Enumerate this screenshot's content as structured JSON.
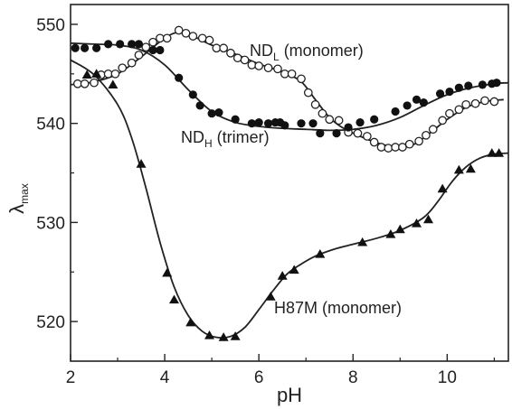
{
  "chart_data": {
    "type": "scatter",
    "xlabel": "pH",
    "ylabel": {
      "main": "λ",
      "sub": "max"
    },
    "xlim": [
      2,
      11.3
    ],
    "ylim": [
      516,
      552
    ],
    "xticks": [
      "2",
      "4",
      "6",
      "8",
      "10"
    ],
    "yticks": [
      "520",
      "530",
      "540",
      "550"
    ],
    "xtick_values": [
      2,
      4,
      6,
      8,
      10
    ],
    "ytick_values": [
      520,
      530,
      540,
      550
    ],
    "grid": false,
    "series": [
      {
        "name": "ND_L (monomer)",
        "marker": "open-circle",
        "points": [
          [
            2.15,
            544.0
          ],
          [
            2.3,
            544.0
          ],
          [
            2.5,
            544.1
          ],
          [
            2.65,
            544.9
          ],
          [
            2.8,
            545.0
          ],
          [
            2.95,
            545.0
          ],
          [
            3.1,
            545.6
          ],
          [
            3.3,
            546.1
          ],
          [
            3.45,
            546.9
          ],
          [
            3.6,
            547.7
          ],
          [
            3.75,
            548.2
          ],
          [
            3.9,
            548.6
          ],
          [
            4.05,
            548.6
          ],
          [
            4.3,
            549.4
          ],
          [
            4.45,
            549.1
          ],
          [
            4.6,
            548.8
          ],
          [
            4.8,
            548.6
          ],
          [
            4.95,
            548.4
          ],
          [
            5.1,
            547.6
          ],
          [
            5.25,
            547.6
          ],
          [
            5.4,
            547.1
          ],
          [
            5.55,
            546.6
          ],
          [
            5.7,
            546.4
          ],
          [
            5.85,
            545.9
          ],
          [
            6.0,
            545.8
          ],
          [
            6.2,
            545.6
          ],
          [
            6.4,
            545.5
          ],
          [
            6.55,
            545.0
          ],
          [
            6.7,
            545.0
          ],
          [
            6.9,
            544.5
          ],
          [
            7.05,
            543.1
          ],
          [
            7.2,
            541.9
          ],
          [
            7.35,
            541.0
          ],
          [
            7.5,
            540.4
          ],
          [
            7.7,
            540.3
          ],
          [
            7.9,
            539.1
          ],
          [
            8.1,
            539.0
          ],
          [
            8.3,
            538.7
          ],
          [
            8.45,
            538.1
          ],
          [
            8.6,
            537.6
          ],
          [
            8.75,
            537.5
          ],
          [
            8.9,
            537.6
          ],
          [
            9.05,
            537.6
          ],
          [
            9.2,
            537.9
          ],
          [
            9.4,
            538.2
          ],
          [
            9.55,
            538.8
          ],
          [
            9.7,
            539.4
          ],
          [
            9.9,
            540.3
          ],
          [
            10.05,
            541.0
          ],
          [
            10.25,
            541.4
          ],
          [
            10.4,
            541.9
          ],
          [
            10.6,
            542.0
          ],
          [
            10.8,
            542.3
          ],
          [
            11.0,
            542.2
          ]
        ],
        "fit": [
          [
            2.0,
            543.9
          ],
          [
            2.5,
            544.2
          ],
          [
            3.0,
            545.0
          ],
          [
            3.5,
            546.7
          ],
          [
            4.0,
            548.6
          ],
          [
            4.3,
            549.2
          ],
          [
            4.6,
            548.8
          ],
          [
            5.0,
            547.9
          ],
          [
            5.5,
            547.0
          ],
          [
            6.0,
            546.0
          ],
          [
            6.5,
            545.2
          ],
          [
            6.9,
            544.2
          ],
          [
            7.2,
            542.4
          ],
          [
            7.5,
            540.6
          ],
          [
            7.8,
            539.5
          ],
          [
            8.2,
            538.6
          ],
          [
            8.6,
            537.9
          ],
          [
            9.0,
            537.6
          ],
          [
            9.3,
            537.9
          ],
          [
            9.6,
            538.9
          ],
          [
            10.0,
            540.4
          ],
          [
            10.4,
            541.6
          ],
          [
            10.8,
            542.2
          ],
          [
            11.2,
            542.4
          ]
        ]
      },
      {
        "name": "ND_H (trimer)",
        "marker": "filled-circle",
        "points": [
          [
            2.1,
            547.6
          ],
          [
            2.3,
            547.6
          ],
          [
            2.55,
            547.6
          ],
          [
            2.8,
            548.0
          ],
          [
            3.05,
            548.0
          ],
          [
            3.3,
            548.0
          ],
          [
            3.45,
            548.0
          ],
          [
            3.75,
            547.4
          ],
          [
            3.9,
            547.4
          ],
          [
            4.3,
            544.6
          ],
          [
            4.6,
            542.9
          ],
          [
            4.75,
            541.8
          ],
          [
            5.0,
            541.0
          ],
          [
            5.15,
            541.1
          ],
          [
            5.5,
            540.4
          ],
          [
            5.85,
            540.0
          ],
          [
            6.0,
            540.1
          ],
          [
            6.2,
            540.0
          ],
          [
            6.35,
            540.1
          ],
          [
            6.45,
            540.1
          ],
          [
            6.55,
            539.8
          ],
          [
            6.9,
            540.0
          ],
          [
            7.15,
            540.0
          ],
          [
            7.3,
            539.0
          ],
          [
            7.65,
            539.0
          ],
          [
            7.9,
            539.6
          ],
          [
            8.15,
            540.1
          ],
          [
            8.45,
            540.4
          ],
          [
            8.9,
            541.2
          ],
          [
            9.15,
            541.8
          ],
          [
            9.35,
            542.4
          ],
          [
            9.5,
            542.1
          ],
          [
            9.85,
            543.0
          ],
          [
            10.05,
            543.2
          ],
          [
            10.25,
            543.6
          ],
          [
            10.45,
            543.8
          ],
          [
            10.75,
            543.9
          ],
          [
            10.95,
            544.0
          ],
          [
            11.05,
            544.1
          ]
        ],
        "fit": [
          [
            2.0,
            548.1
          ],
          [
            2.5,
            548.0
          ],
          [
            3.0,
            547.9
          ],
          [
            3.5,
            547.4
          ],
          [
            4.0,
            545.9
          ],
          [
            4.5,
            543.4
          ],
          [
            5.0,
            541.2
          ],
          [
            5.5,
            540.1
          ],
          [
            6.0,
            539.7
          ],
          [
            6.5,
            539.5
          ],
          [
            7.0,
            539.4
          ],
          [
            7.5,
            539.3
          ],
          [
            8.0,
            539.4
          ],
          [
            8.5,
            539.8
          ],
          [
            9.0,
            540.6
          ],
          [
            9.5,
            541.8
          ],
          [
            10.0,
            542.9
          ],
          [
            10.5,
            543.6
          ],
          [
            11.0,
            544.0
          ],
          [
            11.3,
            544.1
          ]
        ]
      },
      {
        "name": "H87M (monomer)",
        "marker": "filled-triangle",
        "points": [
          [
            2.35,
            544.9
          ],
          [
            2.55,
            545.0
          ],
          [
            2.9,
            543.9
          ],
          [
            3.5,
            535.9
          ],
          [
            4.05,
            524.9
          ],
          [
            4.2,
            522.2
          ],
          [
            4.55,
            519.9
          ],
          [
            4.95,
            518.6
          ],
          [
            5.25,
            518.4
          ],
          [
            5.5,
            518.5
          ],
          [
            6.25,
            522.5
          ],
          [
            6.5,
            524.6
          ],
          [
            6.75,
            525.2
          ],
          [
            7.3,
            526.8
          ],
          [
            8.2,
            528.0
          ],
          [
            8.8,
            528.8
          ],
          [
            9.0,
            529.3
          ],
          [
            9.35,
            529.9
          ],
          [
            9.6,
            530.3
          ],
          [
            9.9,
            533.4
          ],
          [
            10.25,
            535.3
          ],
          [
            10.5,
            535.4
          ],
          [
            10.95,
            537.0
          ],
          [
            11.1,
            537.0
          ]
        ],
        "fit": [
          [
            2.0,
            546.4
          ],
          [
            2.5,
            544.9
          ],
          [
            3.0,
            541.9
          ],
          [
            3.3,
            538.5
          ],
          [
            3.6,
            533.5
          ],
          [
            3.9,
            528.0
          ],
          [
            4.2,
            523.5
          ],
          [
            4.5,
            520.6
          ],
          [
            4.8,
            519.0
          ],
          [
            5.1,
            518.4
          ],
          [
            5.4,
            518.5
          ],
          [
            5.7,
            519.4
          ],
          [
            6.0,
            521.2
          ],
          [
            6.3,
            523.1
          ],
          [
            6.6,
            524.8
          ],
          [
            6.9,
            525.8
          ],
          [
            7.2,
            526.6
          ],
          [
            7.6,
            527.3
          ],
          [
            8.0,
            527.8
          ],
          [
            8.5,
            528.4
          ],
          [
            9.0,
            529.2
          ],
          [
            9.5,
            530.5
          ],
          [
            9.8,
            532.1
          ],
          [
            10.1,
            534.1
          ],
          [
            10.4,
            535.6
          ],
          [
            10.7,
            536.5
          ],
          [
            11.0,
            536.9
          ],
          [
            11.3,
            537.0
          ]
        ]
      }
    ],
    "annotations": [
      {
        "main": "ND",
        "sub": "L",
        "rest": " (monomer)"
      },
      {
        "main": "ND",
        "sub": "H",
        "rest": " (trimer)"
      },
      {
        "main": "H87M (monomer)",
        "sub": "",
        "rest": ""
      }
    ]
  }
}
